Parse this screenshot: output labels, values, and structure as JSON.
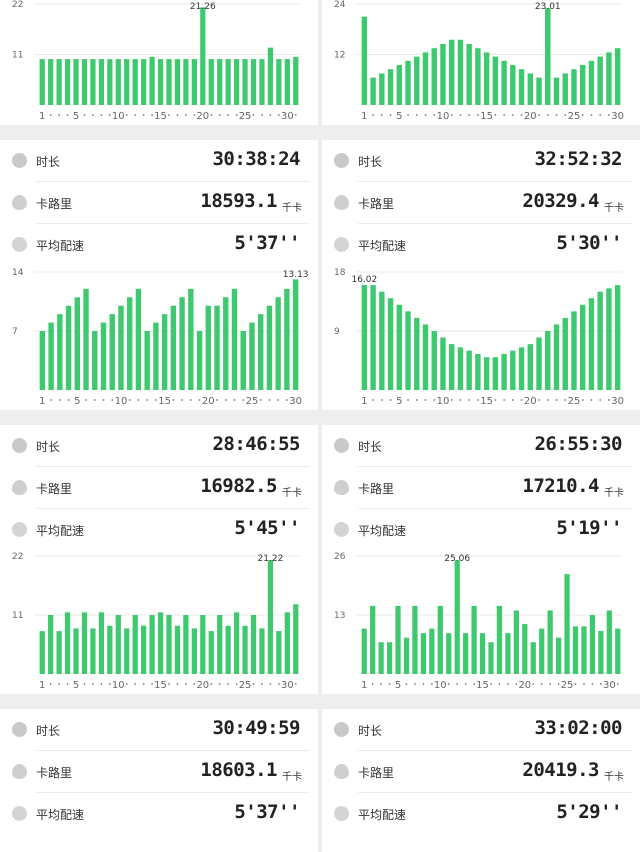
{
  "labels": {
    "duration": "时长",
    "calories": "卡路里",
    "pace": "平均配速",
    "unit": "千卡"
  },
  "chart_data": [
    {
      "type": "bar",
      "yticks": [
        22,
        11
      ],
      "ymax": 22,
      "x_tick_labels": [
        "1",
        "5",
        "10",
        "15",
        "20",
        "25",
        "30"
      ],
      "values": [
        10,
        10,
        10,
        10,
        10,
        10,
        10,
        10,
        10,
        10,
        10,
        10,
        10,
        10.5,
        10,
        10,
        10,
        10,
        10,
        21.26,
        10,
        10,
        10,
        10,
        10,
        10,
        10,
        12.5,
        10,
        10,
        10.5
      ],
      "peak_label": "21.26",
      "peak_index": 19
    },
    {
      "type": "bar",
      "yticks": [
        24,
        12
      ],
      "ymax": 24,
      "x_tick_labels": [
        "1",
        "5",
        "10",
        "15",
        "20",
        "25",
        "30"
      ],
      "values": [
        21,
        6.5,
        7.5,
        8.5,
        9.5,
        10.5,
        11.5,
        12.5,
        13.5,
        14.5,
        15.5,
        15.5,
        14.5,
        13.5,
        12.5,
        11.5,
        10.5,
        9.5,
        8.5,
        7.5,
        6.5,
        23.01,
        6.5,
        7.5,
        8.5,
        9.5,
        10.5,
        11.5,
        12.5,
        13.5
      ],
      "peak_label": "23.01",
      "peak_index": 21
    },
    {
      "type": "bar",
      "yticks": [
        14,
        7
      ],
      "ymax": 14,
      "x_tick_labels": [
        "1",
        "5",
        "10",
        "15",
        "20",
        "25",
        "30"
      ],
      "values": [
        7,
        8,
        9,
        10,
        11,
        12,
        7,
        8,
        9,
        10,
        11,
        12,
        7,
        8,
        9,
        10,
        11,
        12,
        7,
        10,
        10,
        11,
        12,
        7,
        8,
        9,
        10,
        11,
        12,
        13.13
      ],
      "peak_label": "13.13",
      "peak_index": 29
    },
    {
      "type": "bar",
      "yticks": [
        18,
        9
      ],
      "ymax": 18,
      "x_tick_labels": [
        "1",
        "5",
        "10",
        "15",
        "20",
        "25",
        "30"
      ],
      "values": [
        16.02,
        16,
        15,
        14,
        13,
        12,
        11,
        10,
        9,
        8,
        7,
        6.5,
        6,
        5.5,
        5,
        5,
        5.5,
        6,
        6.5,
        7,
        8,
        9,
        10,
        11,
        12,
        13,
        14,
        15,
        15.5,
        16
      ],
      "peak_label": "16.02",
      "peak_index": 0
    },
    {
      "type": "bar",
      "yticks": [
        22,
        11
      ],
      "ymax": 22,
      "x_tick_labels": [
        "1",
        "5",
        "10",
        "15",
        "20",
        "25",
        "30"
      ],
      "values": [
        8,
        11,
        8,
        11.5,
        8.5,
        11.5,
        8.5,
        11.5,
        9,
        11,
        8.5,
        11,
        9,
        11,
        11.5,
        11,
        9,
        11,
        8.5,
        11,
        8,
        11,
        9,
        11.5,
        9,
        11,
        8.5,
        21.22,
        8,
        11.5,
        13
      ],
      "peak_label": "21.22",
      "peak_index": 27
    },
    {
      "type": "bar",
      "yticks": [
        26,
        13
      ],
      "ymax": 26,
      "x_tick_labels": [
        "1",
        "5",
        "10",
        "15",
        "20",
        "25",
        "30"
      ],
      "values": [
        10,
        15,
        7,
        7,
        15,
        8,
        15,
        9,
        10,
        15,
        9,
        25.06,
        9,
        15,
        9,
        7,
        15,
        9,
        14,
        11,
        7,
        10,
        14,
        8,
        22,
        10.5,
        10.5,
        13,
        9.5,
        14,
        10
      ],
      "peak_label": "25.06",
      "peak_index": 11
    }
  ],
  "stats": [
    {
      "duration": "30:38:24",
      "calories": "18593.1",
      "pace": "5'37''"
    },
    {
      "duration": "32:52:32",
      "calories": "20329.4",
      "pace": "5'30''"
    },
    {
      "duration": "28:46:55",
      "calories": "16982.5",
      "pace": "5'45''"
    },
    {
      "duration": "26:55:30",
      "calories": "17210.4",
      "pace": "5'19''"
    },
    {
      "duration": "30:49:59",
      "calories": "18603.1",
      "pace": "5'37''"
    },
    {
      "duration": "33:02:00",
      "calories": "20419.3",
      "pace": "5'29''"
    }
  ]
}
